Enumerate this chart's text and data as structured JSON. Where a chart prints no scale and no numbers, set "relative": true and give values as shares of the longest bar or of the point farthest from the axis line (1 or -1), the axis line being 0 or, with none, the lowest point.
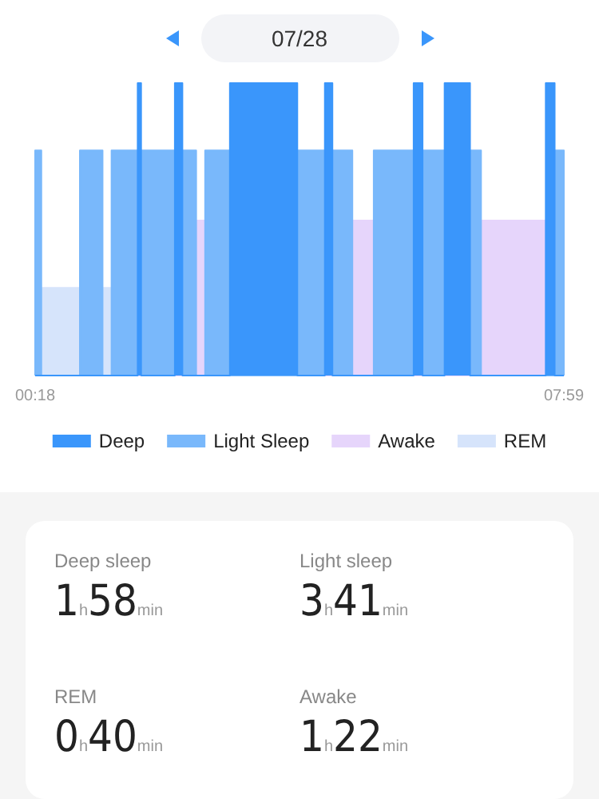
{
  "chart_data": [
    {
      "type": "area",
      "title": "07/28",
      "relative": true,
      "legend": "bottom",
      "xlim": [
        0.3,
        7.9833
      ],
      "xticks": [
        {
          "value": 0.3,
          "label": "00:18"
        },
        {
          "value": 7.9833,
          "label": "07:59"
        }
      ],
      "series": [
        {
          "name": "Deep",
          "color": "#3a96fb",
          "x": [
            0.3,
            1.79,
            1.79,
            1.84,
            1.84,
            2.33,
            2.33,
            2.44,
            2.44,
            3.13,
            3.13,
            4.11,
            4.11,
            4.51,
            4.51,
            4.62,
            4.62,
            5.8,
            5.8,
            5.93,
            5.93,
            6.25,
            6.25,
            6.62,
            6.62,
            7.72,
            7.72,
            7.85,
            7.85,
            7.9833
          ],
          "values": [
            0,
            0,
            1,
            1,
            0,
            0,
            1,
            1,
            0,
            0,
            1,
            1,
            0,
            0,
            1,
            1,
            0,
            0,
            1,
            1,
            0,
            0,
            1,
            1,
            0,
            0,
            1,
            1,
            0,
            0
          ]
        },
        {
          "name": "Light Sleep",
          "color": "#79b8fb",
          "x": [
            0.3,
            0.3,
            0.39,
            0.39,
            0.95,
            0.95,
            1.28,
            1.28,
            1.41,
            1.41,
            2.64,
            2.64,
            2.77,
            2.77,
            3.13,
            3.13,
            4.11,
            4.11,
            4.91,
            4.91,
            5.22,
            5.22,
            6.78,
            6.78,
            7.85,
            7.85,
            7.9833,
            7.9833
          ],
          "values": [
            0,
            0.77,
            0.77,
            0,
            0,
            0.77,
            0.77,
            0,
            0,
            0.77,
            0.77,
            0,
            0,
            0.77,
            0.77,
            0,
            0,
            0.77,
            0.77,
            0,
            0,
            0.77,
            0.77,
            0,
            0,
            0.77,
            0.77,
            0
          ]
        },
        {
          "name": "Awake",
          "color": "#e6d5fb",
          "x": [
            0.3,
            2.64,
            2.64,
            2.77,
            2.77,
            4.91,
            4.91,
            5.22,
            5.22,
            6.78,
            6.78,
            7.72,
            7.72,
            7.9833
          ],
          "values": [
            0,
            0,
            0.53,
            0.53,
            0,
            0,
            0.53,
            0.53,
            0,
            0,
            0.53,
            0.53,
            0,
            0
          ]
        },
        {
          "name": "REM",
          "color": "#d6e4fb",
          "x": [
            0.3,
            0.39,
            0.39,
            0.95,
            0.95,
            1.28,
            1.28,
            1.41,
            1.41,
            7.9833
          ],
          "values": [
            0,
            0,
            0.3,
            0.3,
            0,
            0,
            0.3,
            0.3,
            0,
            0
          ]
        }
      ]
    },
    {
      "type": "other",
      "annotations": [
        "Deep sleep",
        "1h58min",
        "Light sleep",
        "3h41min",
        "REM",
        "0h40min",
        "Awake",
        "1h22min"
      ]
    }
  ]
}
